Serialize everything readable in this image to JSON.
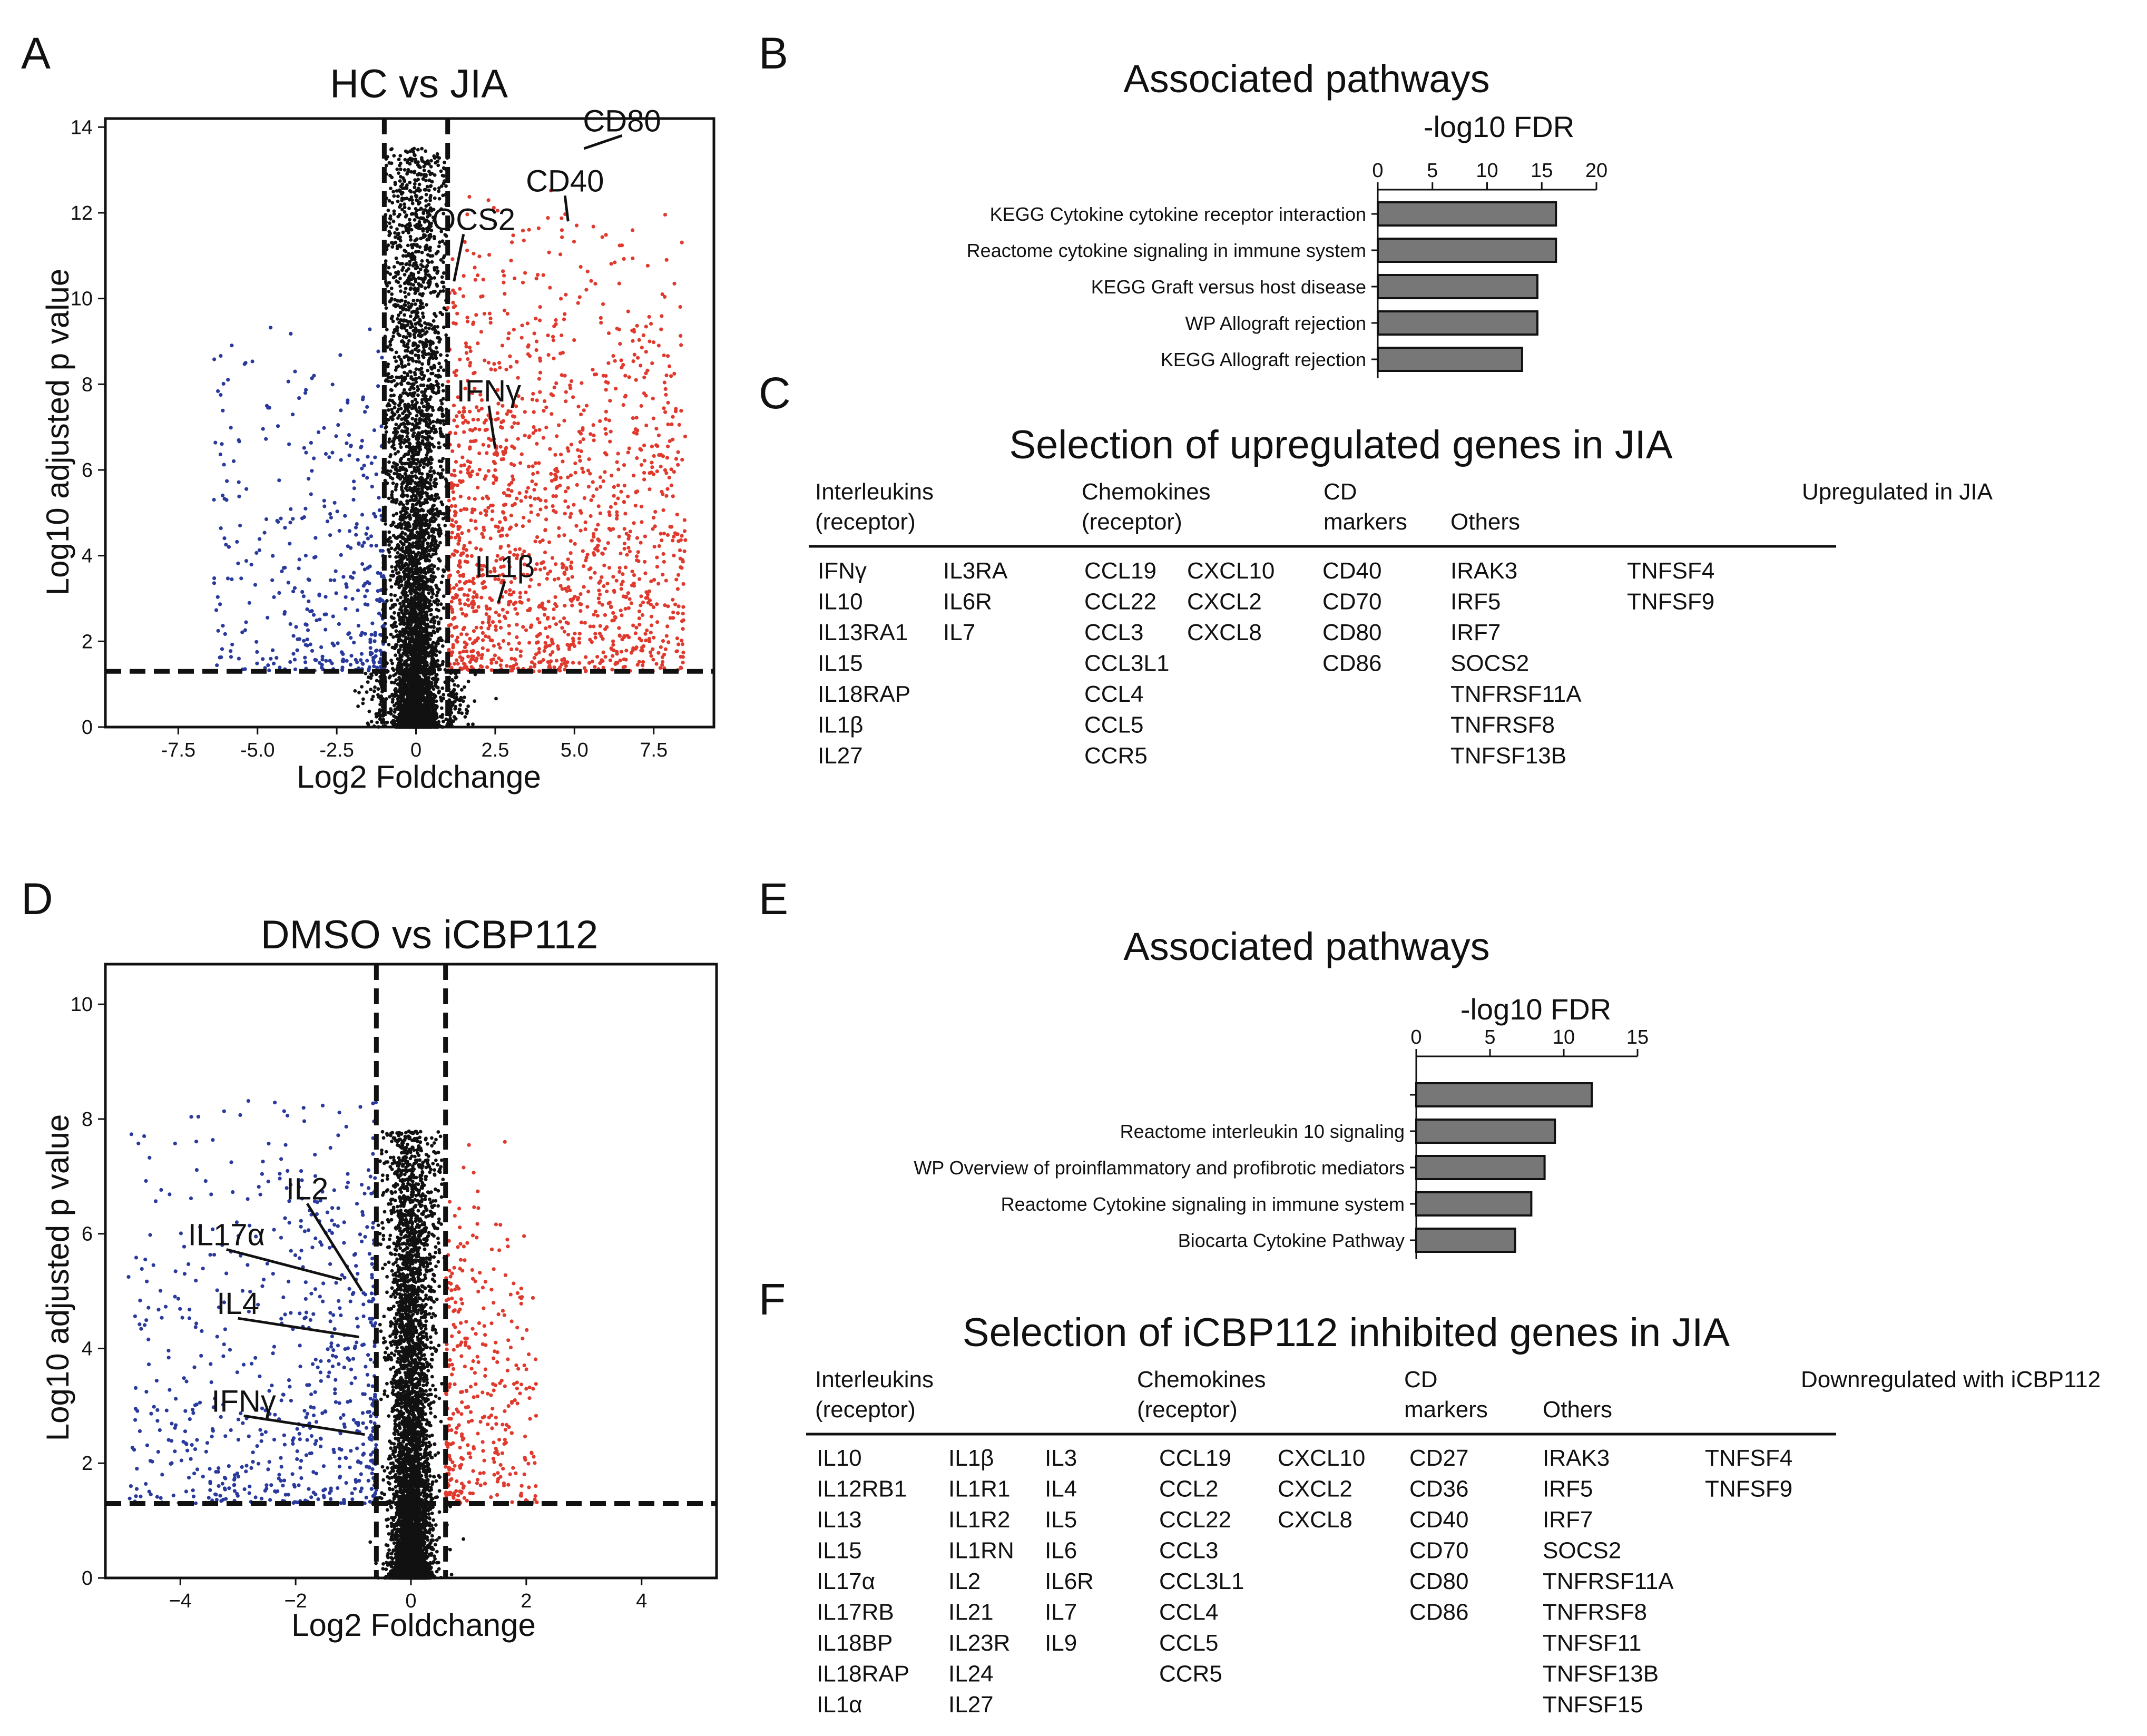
{
  "panels": {
    "a": "A",
    "b": "B",
    "c": "C",
    "d": "D",
    "e": "E",
    "f": "F"
  },
  "chart_data": [
    {
      "type": "scatter",
      "id": "A",
      "title": "HC vs JIA",
      "xlabel": "Log2 Foldchange",
      "ylabel": "Log10 adjusted p value",
      "xlim": [
        -9.8,
        9.4
      ],
      "ylim": [
        0,
        14.2
      ],
      "xticks": [
        -7.5,
        -5.0,
        -2.5,
        0,
        2.5,
        5.0,
        7.5
      ],
      "xtick_labels": [
        "-7.5",
        "-5.0",
        "-2.5",
        "0",
        "2.5",
        "5.0",
        "7.5"
      ],
      "yticks": [
        0,
        2,
        4,
        6,
        8,
        10,
        12,
        14
      ],
      "ytick_labels": [
        "0",
        "2",
        "4",
        "6",
        "8",
        "10",
        "12",
        "14"
      ],
      "fc_thresholds": [
        -1,
        1
      ],
      "p_threshold": 1.3,
      "colors": {
        "down": "#2a3a9c",
        "up": "#e03a2e",
        "ns": "#111111"
      },
      "annotations": [
        {
          "label": "CD80",
          "x": 5.3,
          "y": 13.5,
          "tx": 6.5,
          "ty": 13.9
        },
        {
          "label": "CD40",
          "x": 4.8,
          "y": 11.8,
          "tx": 4.7,
          "ty": 12.5
        },
        {
          "label": "SOCS2",
          "x": 1.2,
          "y": 10.4,
          "tx": 1.5,
          "ty": 11.6
        },
        {
          "label": "IFNγ",
          "x": 2.5,
          "y": 6.5,
          "tx": 2.3,
          "ty": 7.6
        },
        {
          "label": "IL1β",
          "x": 2.6,
          "y": 2.9,
          "tx": 2.8,
          "ty": 3.5
        }
      ],
      "seed": 17,
      "n_ns": 5200,
      "n_down": 420,
      "n_up": 1500
    },
    {
      "type": "scatter",
      "id": "D",
      "title": "DMSO vs iCBP112",
      "xlabel": "Log2 Foldchange",
      "ylabel": "Log10 adjusted p value",
      "xlim": [
        -5.3,
        5.3
      ],
      "ylim": [
        0,
        10.7
      ],
      "xticks": [
        -4,
        -2,
        0,
        2,
        4
      ],
      "xtick_labels": [
        "−4",
        "−2",
        "0",
        "2",
        "4"
      ],
      "yticks": [
        0,
        2,
        4,
        6,
        8,
        10
      ],
      "ytick_labels": [
        "0",
        "2",
        "4",
        "6",
        "8",
        "10"
      ],
      "fc_thresholds": [
        -0.6,
        0.6
      ],
      "p_threshold": 1.3,
      "colors": {
        "down": "#2a3a9c",
        "up": "#e03a2e",
        "ns": "#111111"
      },
      "annotations": [
        {
          "label": "IL2",
          "x": -0.85,
          "y": 5.0,
          "tx": -1.8,
          "ty": 6.6
        },
        {
          "label": "IL17α",
          "x": -1.2,
          "y": 5.2,
          "tx": -3.2,
          "ty": 5.8
        },
        {
          "label": "IL4",
          "x": -0.9,
          "y": 4.2,
          "tx": -3.0,
          "ty": 4.6
        },
        {
          "label": "IFNγ",
          "x": -0.8,
          "y": 2.5,
          "tx": -2.9,
          "ty": 2.9
        }
      ],
      "seed": 29,
      "n_ns": 5200,
      "n_down": 700,
      "n_up": 360
    },
    {
      "type": "bar",
      "id": "B",
      "title": "Associated pathways",
      "xlabel": "-log10 FDR",
      "xlim": [
        0,
        20
      ],
      "xticks": [
        0,
        5,
        10,
        15,
        20
      ],
      "xtick_labels": [
        "0",
        "5",
        "10",
        "15",
        "20"
      ],
      "categories": [
        "KEGG Cytokine cytokine receptor interaction",
        "Reactome cytokine signaling in immune system",
        "KEGG Graft versus host disease",
        "WP Allograft rejection",
        "KEGG Allograft rejection"
      ],
      "values": [
        16.3,
        16.3,
        14.6,
        14.6,
        13.2
      ],
      "bar_color": "#777777"
    },
    {
      "type": "bar",
      "id": "E",
      "title": "Associated pathways",
      "xlabel": "-log10 FDR",
      "xlim": [
        0,
        15
      ],
      "xticks": [
        0,
        5,
        10,
        15
      ],
      "xtick_labels": [
        "0",
        "5",
        "10",
        "15"
      ],
      "categories": [
        "",
        "Reactome interleukin 10 signaling",
        "WP Overview of proinflammatory and profibrotic mediators",
        "Reactome Cytokine signaling in immune system",
        "Biocarta Cytokine Pathway"
      ],
      "values": [
        11.9,
        9.4,
        8.7,
        7.8,
        6.7
      ],
      "bar_color": "#777777"
    }
  ],
  "table_c": {
    "title": "Selection of upregulated genes in JIA",
    "h_interleukins": "Interleukins",
    "h_interleukins2": "(receptor)",
    "h_chemokines": "Chemokines",
    "h_chemokines2": "(receptor)",
    "h_cd": "CD",
    "h_cd2": "markers",
    "h_others": "Others",
    "h_note": "Upregulated in JIA",
    "interleukins_1": [
      "IFNγ",
      "IL10",
      "IL13RA1",
      "IL15",
      "IL18RAP",
      "IL1β",
      "IL27"
    ],
    "interleukins_2": [
      "IL3RA",
      "IL6R",
      "IL7"
    ],
    "chemokines_1": [
      "CCL19",
      "CCL22",
      "CCL3",
      "CCL3L1",
      "CCL4",
      "CCL5",
      "CCR5"
    ],
    "chemokines_2": [
      "CXCL10",
      "CXCL2",
      "CXCL8"
    ],
    "cd": [
      "CD40",
      "CD70",
      "CD80",
      "CD86"
    ],
    "others_1": [
      "IRAK3",
      "IRF5",
      "IRF7",
      "SOCS2",
      "TNFRSF11A",
      "TNFRSF8",
      "TNFSF13B"
    ],
    "others_2": [
      "TNFSF4",
      "TNFSF9"
    ]
  },
  "table_f": {
    "title": "Selection of iCBP112 inhibited genes in JIA",
    "h_interleukins": "Interleukins",
    "h_interleukins2": "(receptor)",
    "h_chemokines": "Chemokines",
    "h_chemokines2": "(receptor)",
    "h_cd": "CD",
    "h_cd2": "markers",
    "h_others": "Others",
    "h_note": "Downregulated with iCBP112",
    "interleukins_1": [
      "IL10",
      "IL12RB1",
      "IL13",
      "IL15",
      "IL17α",
      "IL17RB",
      "IL18BP",
      "IL18RAP",
      "IL1α"
    ],
    "interleukins_2": [
      "IL1β",
      "IL1R1",
      "IL1R2",
      "IL1RN",
      "IL2",
      "IL21",
      "IL23R",
      "IL24",
      "IL27"
    ],
    "interleukins_3": [
      "IL3",
      "IL4",
      "IL5",
      "IL6",
      "IL6R",
      "IL7",
      "IL9"
    ],
    "chemokines_1": [
      "CCL19",
      "CCL2",
      "CCL22",
      "CCL3",
      "CCL3L1",
      "CCL4",
      "CCL5",
      "CCR5"
    ],
    "chemokines_2": [
      "CXCL10",
      "CXCL2",
      "CXCL8"
    ],
    "cd": [
      "CD27",
      "CD36",
      "CD40",
      "CD70",
      "CD80",
      "CD86"
    ],
    "others_1": [
      "IRAK3",
      "IRF5",
      "IRF7",
      "SOCS2",
      "TNFRSF11A",
      "TNFRSF8",
      "TNFSF11",
      "TNFSF13B",
      "TNFSF15"
    ],
    "others_2": [
      "TNFSF4",
      "TNFSF9"
    ]
  }
}
